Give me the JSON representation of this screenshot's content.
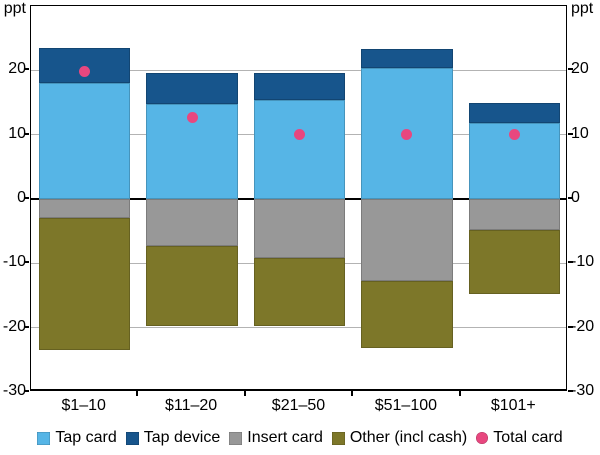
{
  "chart_data": {
    "type": "bar",
    "stacked": true,
    "title": "",
    "ylabel": "ppt",
    "categories": [
      "$1–10",
      "$11–20",
      "$21–50",
      "$51–100",
      "$101+"
    ],
    "series": [
      {
        "name": "Tap card",
        "color": "#56B5E6",
        "values": [
          18.1,
          14.8,
          15.4,
          20.4,
          11.8
        ]
      },
      {
        "name": "Tap device",
        "color": "#17558C",
        "values": [
          5.3,
          4.8,
          4.2,
          2.9,
          3.1
        ]
      },
      {
        "name": "Insert card",
        "color": "#989898",
        "values": [
          -3.0,
          -7.3,
          -9.1,
          -12.8,
          -4.8
        ]
      },
      {
        "name": "Other (incl cash)",
        "color": "#7D7729",
        "values": [
          -20.4,
          -12.5,
          -10.7,
          -10.4,
          -9.9
        ]
      }
    ],
    "markers": {
      "name": "Total card",
      "color": "#E8477F",
      "shape": "circle",
      "values": [
        19.8,
        12.6,
        10.1,
        10.0,
        10.0
      ]
    },
    "ylim": [
      -30,
      30
    ],
    "yticks": [
      20,
      10,
      0,
      -10,
      -20,
      -30
    ],
    "grid": true,
    "legend_position": "bottom",
    "colors": {
      "grid": "#b3b3b3",
      "axis": "#000000",
      "background": "#ffffff"
    }
  }
}
